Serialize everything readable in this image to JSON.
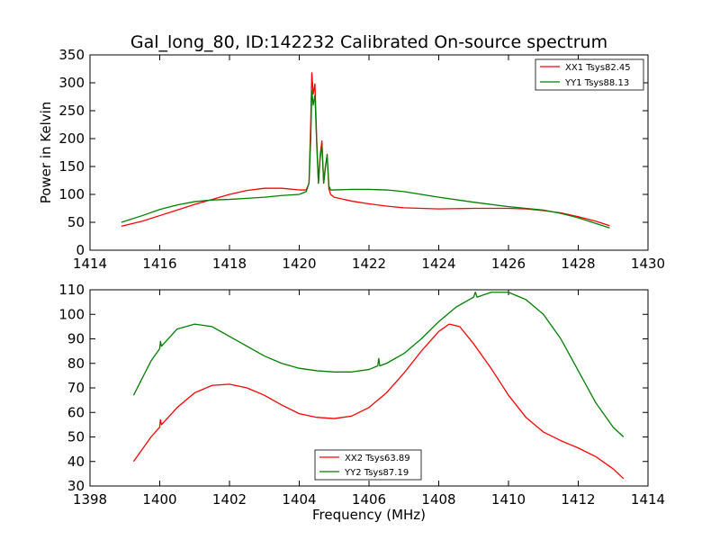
{
  "chart_data": [
    {
      "type": "line",
      "title": "Gal_long_80, ID:142232 Calibrated On-source spectrum",
      "xlabel": "",
      "ylabel": "Power in Kelvin",
      "xlim": [
        1414,
        1430
      ],
      "ylim": [
        0,
        350
      ],
      "xticks": [
        1414,
        1416,
        1418,
        1420,
        1422,
        1424,
        1426,
        1428,
        1430
      ],
      "yticks": [
        0,
        50,
        100,
        150,
        200,
        250,
        300,
        350
      ],
      "legend_position": "top-right",
      "series": [
        {
          "name": "XX1 Tsys82.45",
          "color": "#ff0000",
          "x": [
            1414.9,
            1415.5,
            1416.0,
            1416.5,
            1417.0,
            1417.5,
            1418.0,
            1418.5,
            1419.0,
            1419.5,
            1420.0,
            1420.2,
            1420.28,
            1420.33,
            1420.36,
            1420.4,
            1420.45,
            1420.5,
            1420.55,
            1420.6,
            1420.65,
            1420.7,
            1420.75,
            1420.8,
            1420.85,
            1420.9,
            1421.0,
            1421.5,
            1422.0,
            1422.5,
            1423.0,
            1424.0,
            1425.0,
            1426.0,
            1426.5,
            1427.0,
            1427.5,
            1428.0,
            1428.5,
            1428.9
          ],
          "values": [
            43,
            52,
            62,
            72,
            82,
            91,
            100,
            107,
            111,
            111,
            108,
            108,
            120,
            230,
            318,
            280,
            298,
            200,
            120,
            170,
            196,
            120,
            150,
            170,
            110,
            100,
            95,
            88,
            83,
            79,
            76,
            74,
            75,
            75,
            74,
            71,
            67,
            60,
            52,
            44
          ]
        },
        {
          "name": "YY1 Tsys88.13",
          "color": "#008000",
          "x": [
            1414.9,
            1415.5,
            1416.0,
            1416.5,
            1417.0,
            1417.5,
            1418.0,
            1418.5,
            1419.0,
            1419.5,
            1420.0,
            1420.2,
            1420.28,
            1420.33,
            1420.36,
            1420.4,
            1420.45,
            1420.5,
            1420.55,
            1420.6,
            1420.65,
            1420.7,
            1420.75,
            1420.8,
            1420.85,
            1420.9,
            1421.0,
            1421.5,
            1422.0,
            1422.5,
            1423.0,
            1424.0,
            1425.0,
            1426.0,
            1426.5,
            1427.0,
            1427.5,
            1428.0,
            1428.5,
            1428.9
          ],
          "values": [
            50,
            62,
            73,
            81,
            87,
            90,
            91,
            93,
            95,
            98,
            100,
            105,
            120,
            200,
            286,
            260,
            278,
            190,
            120,
            165,
            188,
            120,
            148,
            172,
            115,
            108,
            108,
            109,
            109,
            108,
            105,
            95,
            86,
            78,
            75,
            72,
            66,
            58,
            48,
            40
          ]
        }
      ]
    },
    {
      "type": "line",
      "title": "",
      "xlabel": "Frequency (MHz)",
      "ylabel": "",
      "xlim": [
        1398,
        1414
      ],
      "ylim": [
        30,
        110
      ],
      "xticks": [
        1398,
        1400,
        1402,
        1404,
        1406,
        1408,
        1410,
        1412,
        1414
      ],
      "yticks": [
        30,
        40,
        50,
        60,
        70,
        80,
        90,
        100,
        110
      ],
      "legend_position": "bottom-center",
      "series": [
        {
          "name": "XX2 Tsys63.89",
          "color": "#ff0000",
          "x": [
            1399.25,
            1399.5,
            1399.75,
            1400.0,
            1400.02,
            1400.05,
            1400.5,
            1401.0,
            1401.5,
            1402.0,
            1402.5,
            1403.0,
            1403.5,
            1404.0,
            1404.5,
            1405.0,
            1405.5,
            1406.0,
            1406.5,
            1407.0,
            1407.5,
            1408.0,
            1408.3,
            1408.6,
            1409.0,
            1409.5,
            1410.0,
            1410.5,
            1411.0,
            1411.5,
            1412.0,
            1412.5,
            1413.0,
            1413.3
          ],
          "values": [
            40,
            45,
            50,
            54,
            57,
            55,
            62,
            68,
            71,
            71.5,
            70,
            67,
            63,
            59.5,
            58,
            57.5,
            58.5,
            62,
            68,
            76,
            85,
            93,
            96,
            95,
            88,
            78,
            67,
            58,
            52,
            48.5,
            45.5,
            42,
            37,
            33
          ]
        },
        {
          "name": "YY2 Tsys87.19",
          "color": "#008000",
          "x": [
            1399.25,
            1399.5,
            1399.75,
            1400.0,
            1400.02,
            1400.05,
            1400.5,
            1401.0,
            1401.5,
            1402.0,
            1402.5,
            1403.0,
            1403.5,
            1404.0,
            1404.5,
            1405.0,
            1405.5,
            1406.0,
            1406.25,
            1406.28,
            1406.31,
            1406.5,
            1407.0,
            1407.5,
            1408.0,
            1408.5,
            1409.0,
            1409.05,
            1409.1,
            1409.5,
            1410.0,
            1410.5,
            1411.0,
            1411.5,
            1412.0,
            1412.5,
            1413.0,
            1413.3
          ],
          "values": [
            67,
            74,
            81,
            86,
            89,
            87,
            94,
            96,
            95,
            91,
            87,
            83,
            80,
            78,
            77,
            76.5,
            76.5,
            77.5,
            79,
            82,
            79,
            80,
            84,
            90,
            97,
            103,
            107,
            109,
            107,
            109,
            109,
            106,
            100,
            90,
            77,
            64,
            54,
            50
          ]
        }
      ]
    }
  ]
}
